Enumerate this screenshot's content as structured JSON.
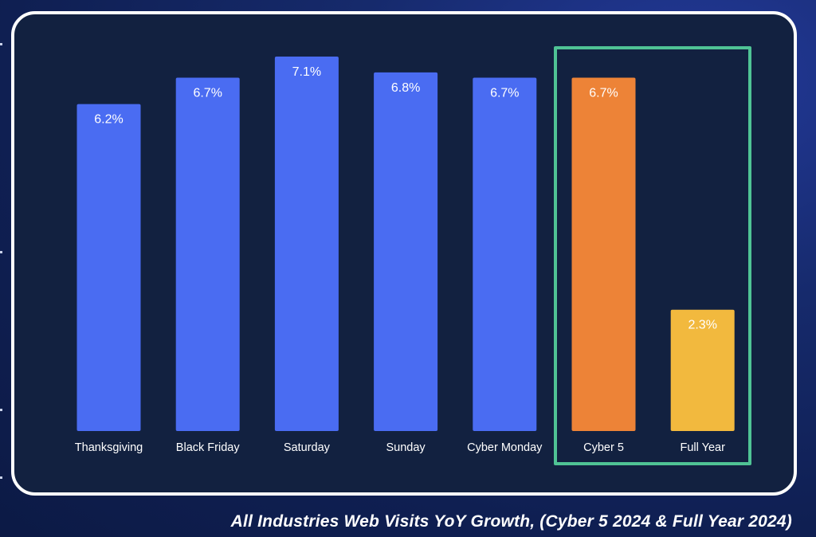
{
  "chart_data": {
    "type": "bar",
    "categories": [
      "Thanksgiving",
      "Black Friday",
      "Saturday",
      "Sunday",
      "Cyber Monday",
      "Cyber 5",
      "Full Year"
    ],
    "values": [
      6.2,
      6.7,
      7.1,
      6.8,
      6.7,
      6.7,
      2.3
    ],
    "labels": [
      "6.2%",
      "6.7%",
      "7.1%",
      "6.8%",
      "6.7%",
      "6.7%",
      "2.3%"
    ],
    "colors": [
      "#4a6cf2",
      "#4a6cf2",
      "#4a6cf2",
      "#4a6cf2",
      "#4a6cf2",
      "#ed8337",
      "#f2b93e"
    ],
    "highlighted_categories": [
      "Cyber 5",
      "Full Year"
    ],
    "highlight_color": "#4fc395",
    "title": "All Industries Web Visits YoY Growth, (Cyber 5 2024 & Full Year 2024)",
    "xlabel": "",
    "ylabel": "",
    "ylim": [
      0,
      7.1
    ],
    "grid": false,
    "legend": "none"
  }
}
